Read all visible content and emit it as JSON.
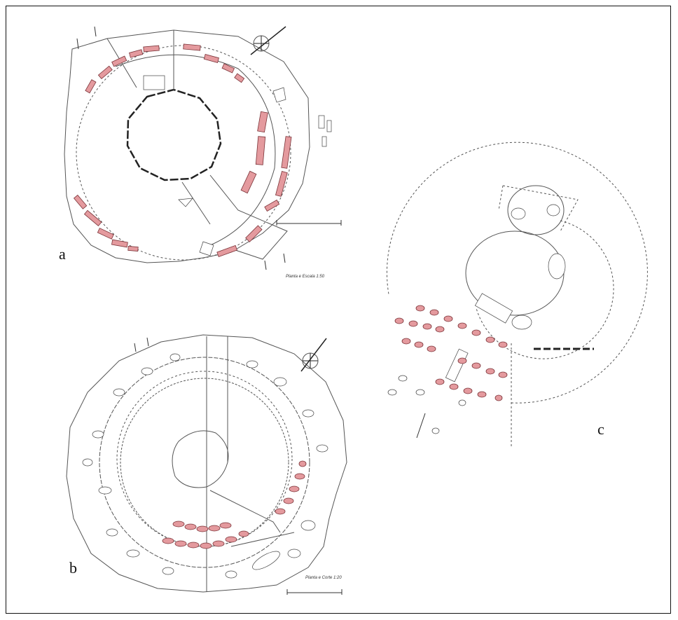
{
  "panels": [
    {
      "id": "a",
      "label": "a",
      "scale_note": "Planta e Escala 1:50"
    },
    {
      "id": "b",
      "label": "b",
      "scale_note": "Planta e Corte 1:20"
    },
    {
      "id": "c",
      "label": "c"
    }
  ],
  "colors": {
    "highlight_stone": "#e49a9e",
    "line": "#555555",
    "frame": "#111111"
  },
  "icons": [
    "north-arrow-icon",
    "scale-bar-icon"
  ]
}
